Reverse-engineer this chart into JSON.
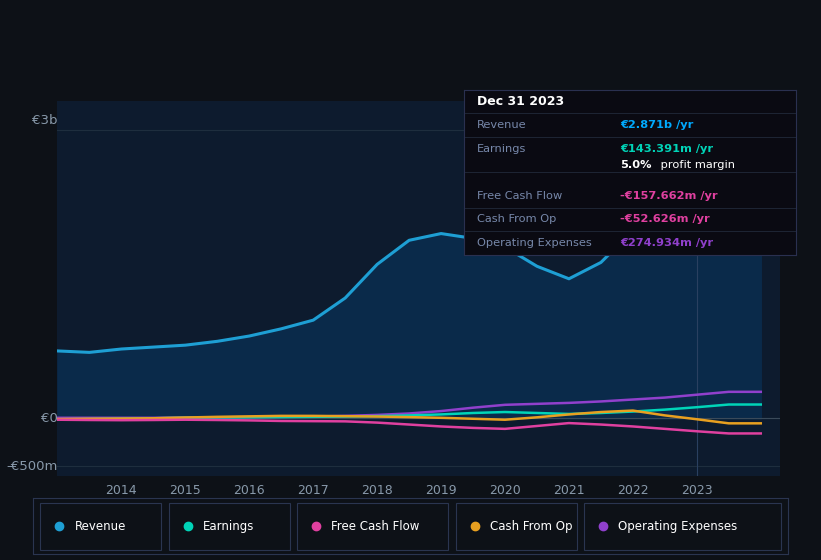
{
  "background_color": "#0d1117",
  "plot_bg_color": "#0d1b2e",
  "years": [
    2013.0,
    2013.5,
    2014.0,
    2014.5,
    2015.0,
    2015.5,
    2016.0,
    2016.5,
    2017.0,
    2017.5,
    2018.0,
    2018.5,
    2019.0,
    2019.5,
    2020.0,
    2020.5,
    2021.0,
    2021.5,
    2022.0,
    2022.5,
    2023.0,
    2023.5,
    2024.0
  ],
  "revenue": [
    700,
    685,
    720,
    740,
    760,
    800,
    855,
    930,
    1020,
    1250,
    1600,
    1850,
    1920,
    1870,
    1780,
    1580,
    1450,
    1620,
    1950,
    2250,
    2620,
    2871,
    2871
  ],
  "earnings": [
    -10,
    -8,
    -5,
    0,
    5,
    8,
    10,
    12,
    15,
    18,
    22,
    30,
    40,
    55,
    65,
    55,
    45,
    55,
    70,
    90,
    115,
    143,
    143
  ],
  "free_cash_flow": [
    -15,
    -18,
    -20,
    -18,
    -15,
    -18,
    -22,
    -28,
    -30,
    -32,
    -45,
    -65,
    -85,
    -100,
    -110,
    -80,
    -50,
    -65,
    -85,
    -110,
    -135,
    -157.662,
    -157.662
  ],
  "cash_from_op": [
    -8,
    -5,
    -3,
    0,
    8,
    15,
    20,
    25,
    25,
    22,
    18,
    12,
    5,
    -5,
    -15,
    10,
    40,
    65,
    80,
    30,
    -10,
    -52.626,
    -52.626
  ],
  "operating_expenses": [
    5,
    5,
    5,
    5,
    8,
    10,
    12,
    15,
    18,
    25,
    35,
    50,
    75,
    110,
    140,
    150,
    160,
    175,
    195,
    215,
    245,
    274.934,
    274.934
  ],
  "revenue_color": "#1e9fd4",
  "revenue_fill": "#0a2a4a",
  "earnings_color": "#00d4b8",
  "free_cash_flow_color": "#e040a0",
  "cash_from_op_color": "#e8a020",
  "operating_expenses_color": "#9040cc",
  "ytick_color": "#8899aa",
  "xtick_color": "#8899aa",
  "grid_color": "#1e2e3e",
  "border_color": "#2a3a4a",
  "text_color": "#8899aa",
  "white_color": "#ffffff",
  "title_text": "Dec 31 2023",
  "info_box_bg": "#0a0a12",
  "info_box_border": "#2a3050",
  "Revenue_label": "Revenue",
  "Revenue_value": "€2.871b /yr",
  "Revenue_color": "#00aaff",
  "Earnings_label": "Earnings",
  "Earnings_value": "€143.391m /yr",
  "Earnings_color": "#00d4b8",
  "Margin_value": "5.0%",
  "Margin_text": " profit margin",
  "FCF_label": "Free Cash Flow",
  "FCF_value": "-€157.662m /yr",
  "FCF_color": "#e040a0",
  "CashOp_label": "Cash From Op",
  "CashOp_value": "-€52.626m /yr",
  "CashOp_color": "#e040a0",
  "OpEx_label": "Operating Expenses",
  "OpEx_value": "€274.934m /yr",
  "OpEx_color": "#9040cc",
  "legend_items": [
    {
      "label": "Revenue",
      "color": "#1e9fd4"
    },
    {
      "label": "Earnings",
      "color": "#00d4b8"
    },
    {
      "label": "Free Cash Flow",
      "color": "#e040a0"
    },
    {
      "label": "Cash From Op",
      "color": "#e8a020"
    },
    {
      "label": "Operating Expenses",
      "color": "#9040cc"
    }
  ],
  "ylim_min": -600,
  "ylim_max": 3300,
  "xlim_min": 2013.0,
  "xlim_max": 2024.3,
  "xtick_values": [
    2014,
    2015,
    2016,
    2017,
    2018,
    2019,
    2020,
    2021,
    2022,
    2023
  ],
  "xtick_labels": [
    "2014",
    "2015",
    "2016",
    "2017",
    "2018",
    "2019",
    "2020",
    "2021",
    "2022",
    "2023"
  ],
  "hgrid_values": [
    -500,
    0,
    3000
  ],
  "y_label_3b": "€3b",
  "y_label_0": "€0",
  "y_label_neg500": "-€500m"
}
